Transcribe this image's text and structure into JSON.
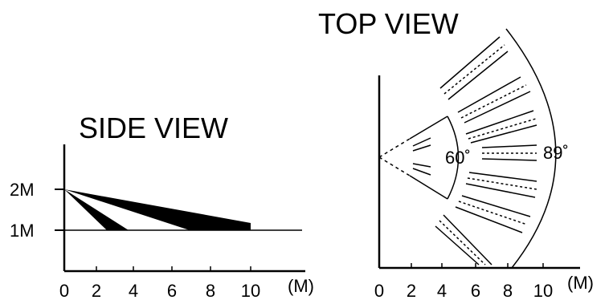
{
  "side_view": {
    "title": "SIDE VIEW",
    "y_labels": [
      "2M",
      "1M"
    ],
    "x_ticks": [
      "0",
      "2",
      "4",
      "6",
      "8",
      "10"
    ],
    "unit": "(M)",
    "sensor_height_m": 2,
    "floor_height_m": 1,
    "long_beam_reach_m": [
      7,
      10
    ],
    "short_beam_reach_m": [
      2.7,
      3.7
    ]
  },
  "top_view": {
    "title": "TOP VIEW",
    "x_ticks": [
      "0",
      "2",
      "4",
      "6",
      "8",
      "10"
    ],
    "unit": "(M)",
    "inner_angle": "60˚",
    "outer_angle": "89˚"
  }
}
